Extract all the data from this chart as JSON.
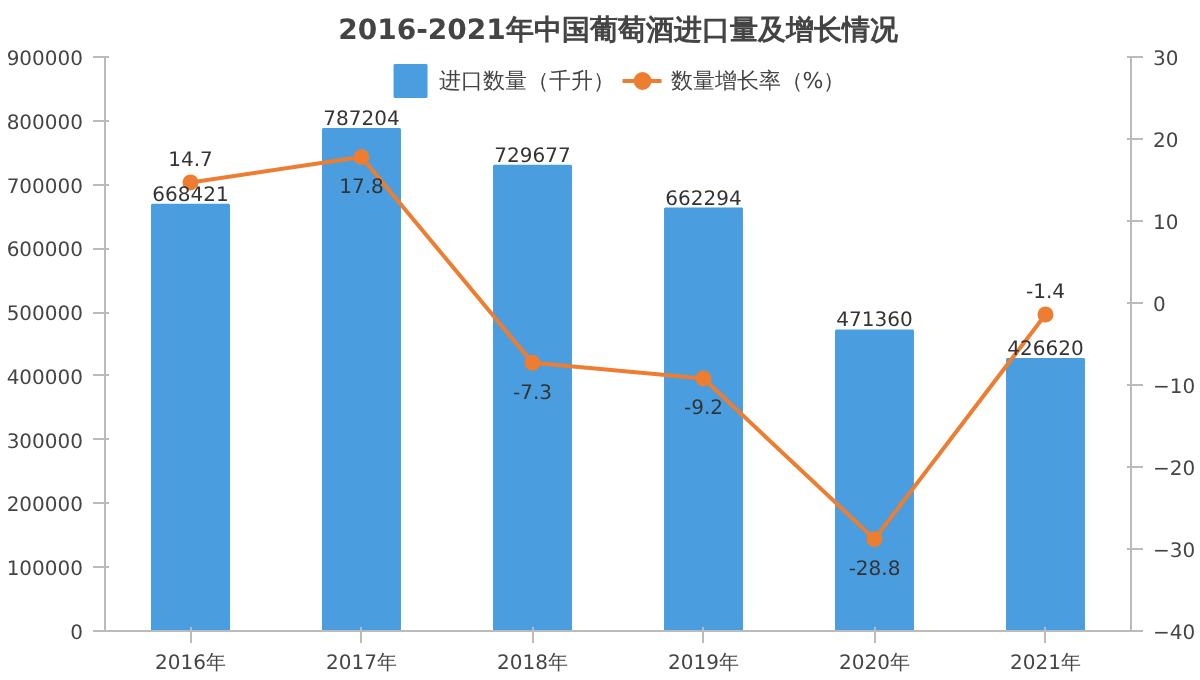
{
  "chart_data": {
    "type": "bar",
    "title": "2016-2021年中国葡萄酒进口量及增长情况",
    "categories": [
      "2016年",
      "2017年",
      "2018年",
      "2019年",
      "2020年",
      "2021年"
    ],
    "series": [
      {
        "name": "进口数量（千升）",
        "color": "#4a9ee0",
        "values": [
          668421,
          787204,
          729677,
          662294,
          471360,
          426620
        ]
      },
      {
        "name": "数量增长率（%）",
        "type": "line",
        "axis": "y2",
        "color": "#ed7d31",
        "marker": "circle",
        "values": [
          14.7,
          17.8,
          -7.3,
          -9.2,
          -28.8,
          -1.4
        ]
      }
    ],
    "ylim": [
      0,
      900000
    ],
    "yticks": [
      0,
      100000,
      200000,
      300000,
      400000,
      500000,
      600000,
      700000,
      800000,
      900000
    ],
    "y2lim": [
      -40,
      30
    ],
    "y2ticks": [
      -40,
      -30,
      -20,
      -10,
      0,
      10,
      20,
      30
    ],
    "data_labels": true,
    "legend": "top",
    "grid": false
  }
}
